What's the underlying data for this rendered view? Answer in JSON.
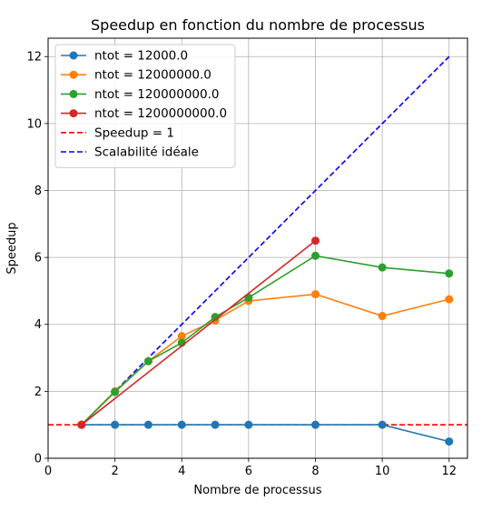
{
  "chart_data": {
    "type": "line",
    "title": "Speedup en fonction du nombre de processus",
    "xlabel": "Nombre de processus",
    "ylabel": "Speedup",
    "xlim": [
      0,
      12.55
    ],
    "ylim": [
      0,
      12.55
    ],
    "x_ticks": [
      0,
      2,
      4,
      6,
      8,
      10,
      12
    ],
    "y_ticks": [
      0,
      2,
      4,
      6,
      8,
      10,
      12
    ],
    "grid": true,
    "legend_position": "top-left",
    "series": [
      {
        "name": "ntot = 12000.0",
        "color": "#1f77b4",
        "style": "solid",
        "marker": "circle",
        "x": [
          1,
          2,
          3,
          4,
          5,
          6,
          8,
          10,
          12
        ],
        "y": [
          1.0,
          1.0,
          1.0,
          1.0,
          1.0,
          1.0,
          1.0,
          1.0,
          0.5
        ]
      },
      {
        "name": "ntot = 12000000.0",
        "color": "#ff7f0e",
        "style": "solid",
        "marker": "circle",
        "x": [
          1,
          2,
          3,
          4,
          5,
          6,
          8,
          10,
          12
        ],
        "y": [
          1.0,
          2.0,
          2.9,
          3.65,
          4.12,
          4.7,
          4.9,
          4.25,
          4.75
        ]
      },
      {
        "name": "ntot = 120000000.0",
        "color": "#2ca02c",
        "style": "solid",
        "marker": "circle",
        "x": [
          1,
          2,
          3,
          4,
          5,
          6,
          8,
          10,
          12
        ],
        "y": [
          1.0,
          1.98,
          2.9,
          3.45,
          4.22,
          4.8,
          6.05,
          5.7,
          5.52
        ]
      },
      {
        "name": "ntot = 1200000000.0",
        "color": "#d62728",
        "style": "solid",
        "marker": "circle",
        "x": [
          1,
          8
        ],
        "y": [
          1.0,
          6.5
        ]
      },
      {
        "name": "Speedup = 1",
        "color": "#ff0000",
        "style": "dashed",
        "marker": "none",
        "type": "hline",
        "y": 1.0
      },
      {
        "name": "Scalabilité idéale",
        "color": "#0000ff",
        "style": "dashed",
        "marker": "none",
        "x": [
          1,
          12
        ],
        "y": [
          1,
          12
        ]
      }
    ]
  }
}
